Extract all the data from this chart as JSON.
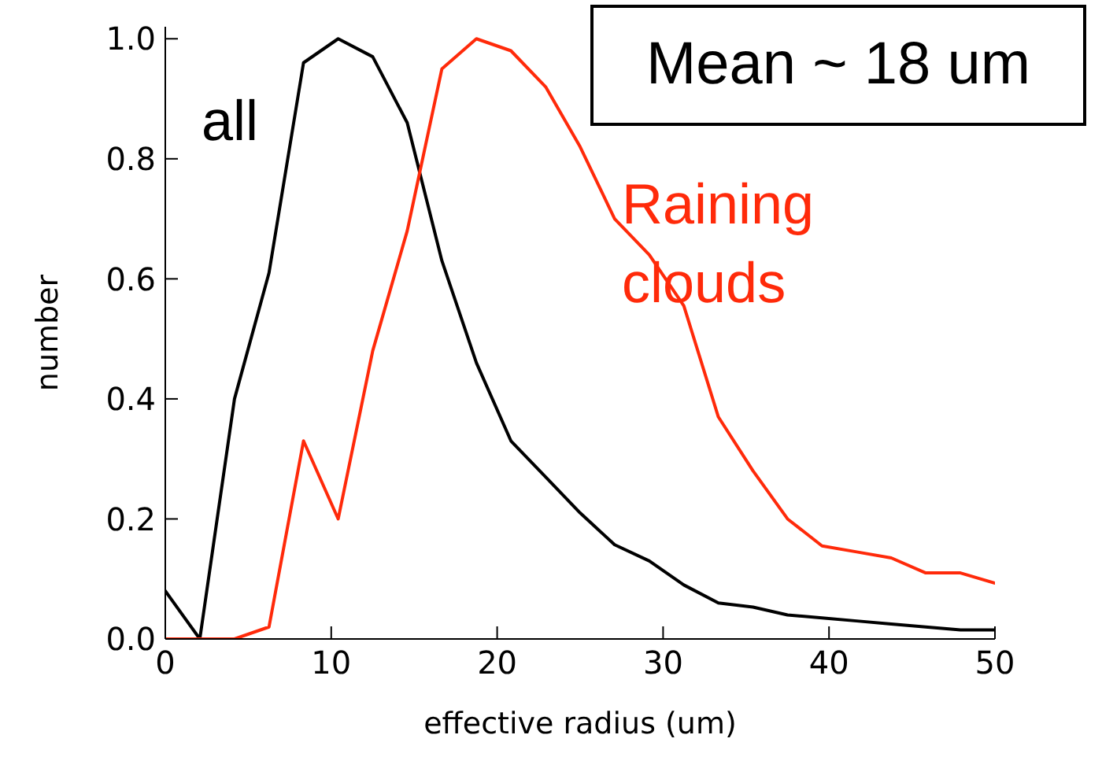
{
  "chart_data": {
    "type": "line",
    "xlabel": "effective radius (um)",
    "ylabel": "number",
    "x": [
      0,
      2.08,
      4.17,
      6.25,
      8.33,
      10.42,
      12.5,
      14.58,
      16.67,
      18.75,
      20.83,
      22.92,
      25,
      27.08,
      29.17,
      31.25,
      33.33,
      35.42,
      37.5,
      39.58,
      41.67,
      43.75,
      45.83,
      47.92,
      50
    ],
    "series": [
      {
        "name": "all",
        "color": "#000000",
        "values": [
          0.08,
          0,
          0.4,
          0.61,
          0.96,
          1.0,
          0.97,
          0.86,
          0.63,
          0.46,
          0.33,
          0.27,
          0.21,
          0.157,
          0.13,
          0.09,
          0.06,
          0.053,
          0.04,
          0.035,
          0.03,
          0.025,
          0.02,
          0.015,
          0.015
        ]
      },
      {
        "name": "Raining clouds",
        "color": "#ff2a0a",
        "values": [
          0,
          0,
          0,
          0.02,
          0.33,
          0.2,
          0.48,
          0.68,
          0.95,
          1.0,
          0.98,
          0.92,
          0.82,
          0.7,
          0.64,
          0.555,
          0.37,
          0.28,
          0.2,
          0.155,
          0.145,
          0.135,
          0.11,
          0.11,
          0.093
        ]
      }
    ],
    "xlim": [
      0,
      50
    ],
    "xticks": [
      0,
      10,
      20,
      30,
      40,
      50
    ],
    "ylim": [
      0,
      1.02
    ],
    "yticks": [
      {
        "value": 0,
        "label": "0.0"
      },
      {
        "value": 0.2,
        "label": "0.2"
      },
      {
        "value": 0.4,
        "label": "0.4"
      },
      {
        "value": 0.6,
        "label": "0.6"
      },
      {
        "value": 0.8,
        "label": "0.8"
      },
      {
        "value": 1.0,
        "label": "1.0"
      }
    ],
    "annotations": [
      "Mean ~ 18 um"
    ],
    "grid": false,
    "legend": false,
    "marker": "none",
    "line_style": "solid"
  }
}
